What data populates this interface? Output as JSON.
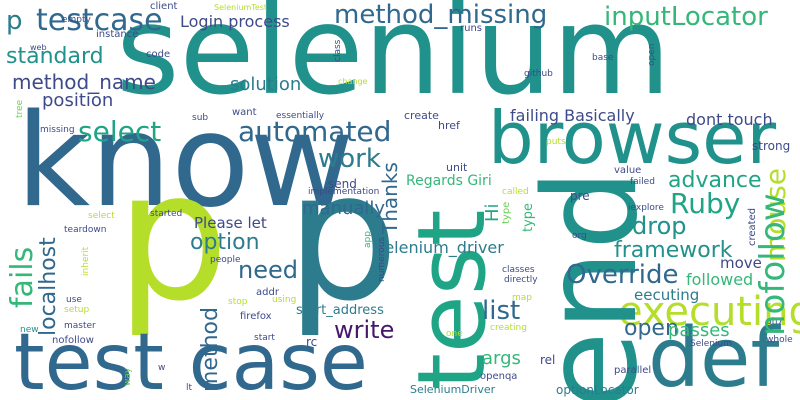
{
  "palette": {
    "darkviolet": "#46186b",
    "indigo": "#3e4a89",
    "slate": "#31688e",
    "blue": "#2c7c8e",
    "teal": "#21918c",
    "tealgreen": "#20a486",
    "green": "#35b779",
    "lightgreen": "#6ece58",
    "lime": "#b5de2b"
  },
  "words": {
    "selenium": "selenium",
    "know": "know",
    "p_large": "p",
    "p_large_2": "p",
    "test_case": "test case",
    "end": "end",
    "test_vertical": "test",
    "def": "def",
    "browser": "browser",
    "executing": "executing",
    "p_small": "p",
    "testcase": "testcase",
    "method_missing": "method_missing",
    "inputLocator": "inputLocator",
    "standard": "standard",
    "method_name": "method_name",
    "position": "position",
    "select": "select",
    "automated": "automated",
    "work": "work",
    "solution": "solution",
    "login_process": "Login process",
    "thanks": "Thanks",
    "ruby": "Ruby",
    "advance": "advance",
    "mouse": "mouse",
    "drop": "drop",
    "framework": "framework",
    "override": "Override",
    "nofollow": "nofollow",
    "fails": "fails",
    "localhost": "localhost",
    "option": "option",
    "need": "need",
    "method": "method",
    "please_let": "Please let",
    "manually": "manually",
    "regards_giri": "Regards Giri",
    "hi": "Hi",
    "selenium_driver": "selenium_driver",
    "list": "list",
    "write": "write",
    "args": "args",
    "open": "open",
    "passes": "passes",
    "followed": "followed",
    "eecuting": "eecuting",
    "move": "move",
    "failing_basically": "failing Basically",
    "dont_touch": "dont touch",
    "start_address": "start_address",
    "selenium_driver_class": "SeleniumDriver",
    "option_locator": "optionLocator",
    "strong": "strong",
    "send": "send",
    "unit": "unit",
    "pre": "pre",
    "href": "href",
    "create": "create",
    "firefox": "firefox",
    "rc": "rc",
    "rel": "rel",
    "openqa": "openqa",
    "parallel": "parallel",
    "selenium_small": "Selenium",
    "whole": "whole",
    "ph7": "ph7",
    "value": "value",
    "failed": "failed",
    "iexplore": "iexplore",
    "org": "org",
    "numerous": "numerous",
    "classes": "classes",
    "directly": "directly",
    "map": "map",
    "creating": "creating",
    "one": "one",
    "type": "type",
    "type_2": "type",
    "called": "called",
    "puts": "puts",
    "created": "created",
    "people": "people",
    "addr": "addr",
    "stop": "stop",
    "using": "using",
    "start": "start",
    "implementation": "implementation",
    "started": "started",
    "teardown": "teardown",
    "select_small": "select",
    "inherit": "inherit",
    "app": "app",
    "use": "use",
    "setup": "setup",
    "new": "new",
    "master": "master",
    "missing": "missing",
    "tree": "tree",
    "web": "web",
    "empty": "empty",
    "client": "client",
    "selenium_test": "SeleniumTest",
    "instance": "instance",
    "code": "code",
    "class": "class",
    "runs": "runs",
    "base": "base",
    "github": "github",
    "change": "change",
    "sub": "sub",
    "want": "want",
    "essentially": "essentially",
    "way": "way",
    "w": "w",
    "lt": "lt",
    "open_small": "open"
  }
}
